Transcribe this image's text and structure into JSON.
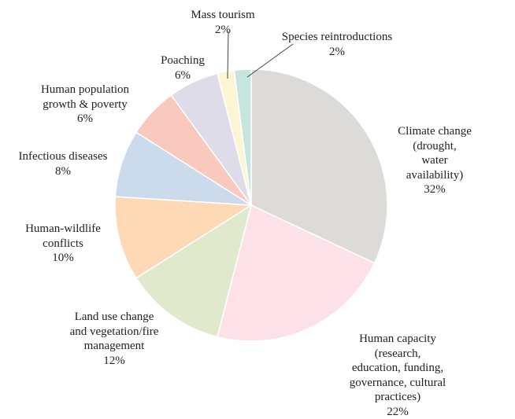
{
  "chart_data": {
    "type": "pie",
    "categories": [
      "Climate change (drought,\nwater availability)",
      "Human capacity (research,\neducation, funding,\ngovernance, cultural practices)",
      "Land use change\nand vegetation/fire\nmanagement",
      "Human-wildlife\nconflicts",
      "Infectious diseases",
      "Human population\ngrowth & poverty",
      "Poaching",
      "Mass tourism",
      "Species reintroductions"
    ],
    "values": [
      32,
      22,
      12,
      10,
      8,
      6,
      6,
      2,
      2
    ],
    "value_labels": [
      "32%",
      "22%",
      "12%",
      "10%",
      "8%",
      "6%",
      "6%",
      "2%",
      "2%"
    ],
    "colors": [
      "#dcdbd8",
      "#fde1e8",
      "#e0e9cb",
      "#fdd9b6",
      "#cbdbec",
      "#f9c9be",
      "#dfdcea",
      "#fdf6d4",
      "#c7e5df"
    ]
  }
}
